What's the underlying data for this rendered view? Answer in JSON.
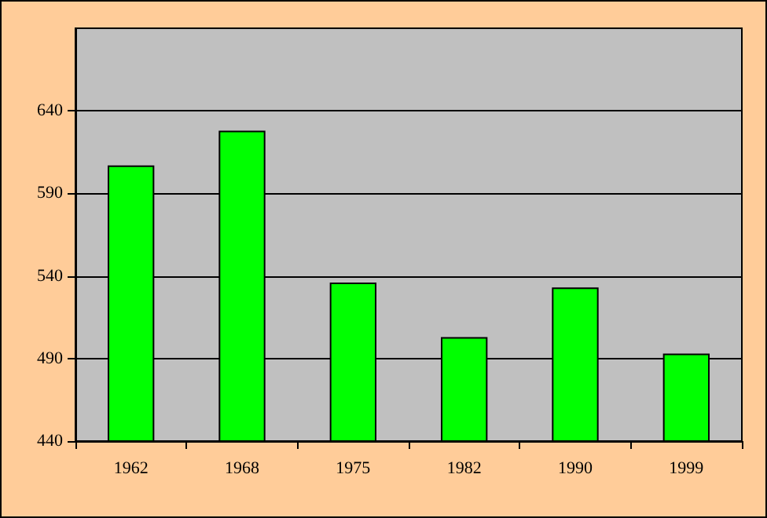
{
  "chart_data": {
    "type": "bar",
    "categories": [
      "1962",
      "1968",
      "1975",
      "1982",
      "1990",
      "1999"
    ],
    "values": [
      607,
      628,
      536,
      503,
      533,
      493
    ],
    "color": "#00ff00",
    "ylim": [
      440,
      690
    ],
    "yticks": [
      440,
      490,
      540,
      590,
      640
    ],
    "grid": "y"
  }
}
